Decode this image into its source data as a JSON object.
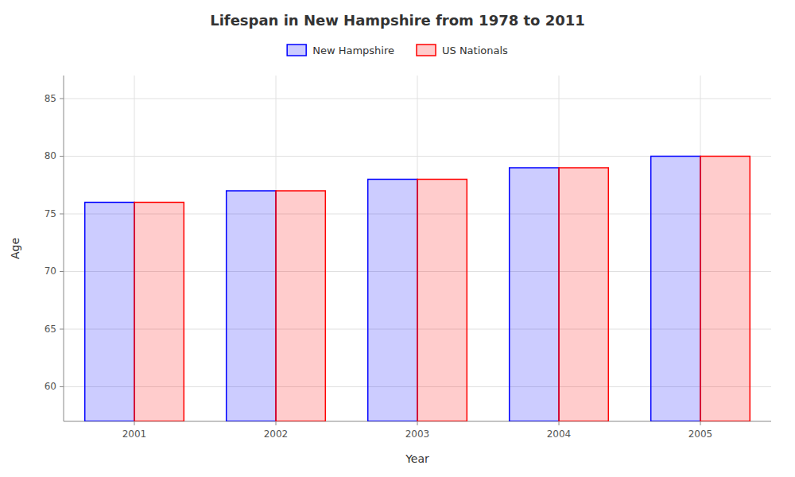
{
  "chart_data": {
    "type": "bar",
    "title": "Lifespan in New Hampshire from 1978 to 2011",
    "x_label": "Year",
    "y_label": "Age",
    "categories": [
      "2001",
      "2002",
      "2003",
      "2004",
      "2005"
    ],
    "series": [
      {
        "name": "New Hampshire",
        "color": "#0000ff",
        "values": [
          76,
          77,
          78,
          79,
          80
        ]
      },
      {
        "name": "US Nationals",
        "color": "#ff0000",
        "values": [
          76,
          77,
          78,
          79,
          80
        ]
      }
    ],
    "ylim": [
      57,
      87
    ],
    "yticks": [
      60,
      65,
      70,
      75,
      80,
      85
    ],
    "grid": true,
    "legend": "top"
  }
}
